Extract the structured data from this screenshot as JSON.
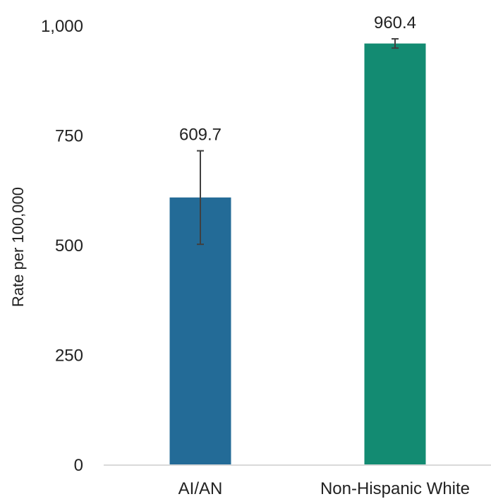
{
  "chart_data": {
    "type": "bar",
    "categories": [
      "AI/AN",
      "Non-Hispanic White"
    ],
    "values": [
      609.7,
      960.4
    ],
    "value_labels": [
      "609.7",
      "960.4"
    ],
    "error_bars": [
      {
        "low": 503,
        "high": 716
      },
      {
        "low": 950,
        "high": 971
      }
    ],
    "colors": [
      "#236b97",
      "#138b72"
    ],
    "title": "",
    "xlabel": "",
    "ylabel": "Rate per 100,000",
    "ylim": [
      0,
      1000
    ],
    "y_ticks": [
      0,
      250,
      500,
      750,
      1000
    ],
    "y_tick_labels": [
      "0",
      "250",
      "500",
      "750",
      "1,000"
    ],
    "grid": false,
    "axis_color": "#d9d9d9",
    "error_bar_color": "#404040",
    "text_color": "#222222"
  }
}
